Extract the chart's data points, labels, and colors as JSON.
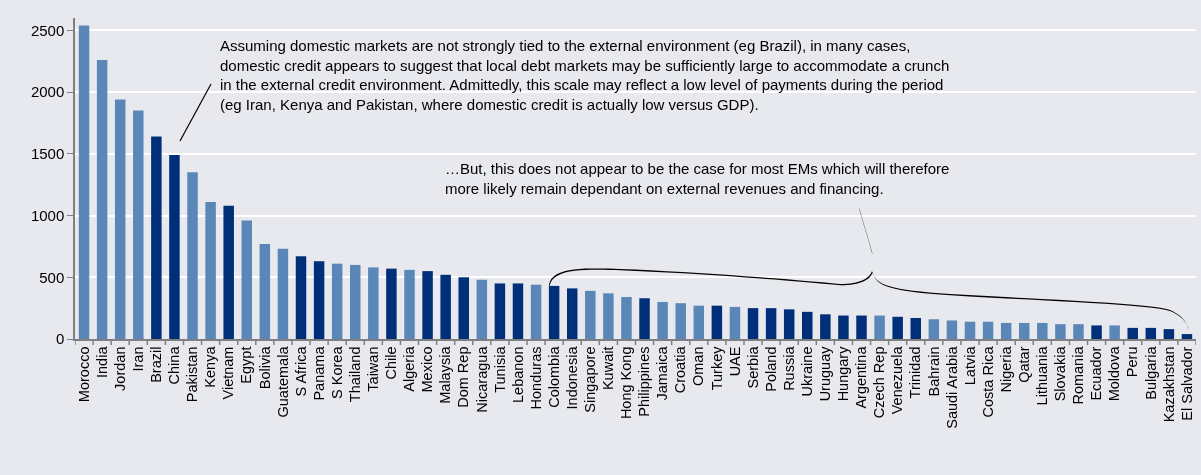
{
  "chart_data": {
    "type": "bar",
    "categories": [
      "Morocco",
      "India",
      "Jordan",
      "Iran",
      "Brazil",
      "China",
      "Pakistan",
      "Kenya",
      "Vietnam",
      "Egypt",
      "Bolivia",
      "Guatemala",
      "S Africa",
      "Panama",
      "S Korea",
      "Thailand",
      "Taiwan",
      "Chile",
      "Algeria",
      "Mexico",
      "Malaysia",
      "Dom Rep",
      "Nicaragua",
      "Tunisia",
      "Lebanon",
      "Honduras",
      "Colombia",
      "Indonesia",
      "Singapore",
      "Kuwait",
      "Hong Kong",
      "Philippines",
      "Jamaica",
      "Croatia",
      "Oman",
      "Turkey",
      "UAE",
      "Serbia",
      "Poland",
      "Russia",
      "Ukraine",
      "Uruguay",
      "Hungary",
      "Argentina",
      "Czech Rep",
      "Venezuela",
      "Trinidad",
      "Bahrain",
      "Saudi Arabia",
      "Latvia",
      "Costa Rica",
      "Nigeria",
      "Qatar",
      "Lithuania",
      "Slovakia",
      "Romania",
      "Ecuador",
      "Moldova",
      "Peru",
      "Bulgaria",
      "Kazakhstan",
      "El Salvador"
    ],
    "values": [
      2540,
      2260,
      1940,
      1850,
      1640,
      1490,
      1350,
      1110,
      1080,
      960,
      770,
      730,
      670,
      630,
      610,
      600,
      580,
      570,
      560,
      550,
      520,
      500,
      480,
      450,
      450,
      440,
      430,
      410,
      390,
      370,
      340,
      330,
      300,
      290,
      270,
      270,
      260,
      250,
      250,
      240,
      220,
      200,
      190,
      190,
      190,
      180,
      170,
      160,
      150,
      140,
      140,
      130,
      130,
      130,
      120,
      120,
      110,
      110,
      90,
      90,
      80,
      40
    ],
    "colors": [
      "#5b86b8",
      "#5b86b8",
      "#5b86b8",
      "#5b86b8",
      "#002f7a",
      "#002f7a",
      "#5b86b8",
      "#5b86b8",
      "#002f7a",
      "#5b86b8",
      "#5b86b8",
      "#5b86b8",
      "#002f7a",
      "#002f7a",
      "#5b86b8",
      "#5b86b8",
      "#5b86b8",
      "#002f7a",
      "#5b86b8",
      "#002f7a",
      "#002f7a",
      "#002f7a",
      "#5b86b8",
      "#002f7a",
      "#002f7a",
      "#5b86b8",
      "#002f7a",
      "#002f7a",
      "#5b86b8",
      "#5b86b8",
      "#5b86b8",
      "#002f7a",
      "#5b86b8",
      "#5b86b8",
      "#5b86b8",
      "#002f7a",
      "#5b86b8",
      "#002f7a",
      "#002f7a",
      "#002f7a",
      "#002f7a",
      "#002f7a",
      "#002f7a",
      "#002f7a",
      "#5b86b8",
      "#002f7a",
      "#002f7a",
      "#5b86b8",
      "#5b86b8",
      "#5b86b8",
      "#5b86b8",
      "#5b86b8",
      "#5b86b8",
      "#5b86b8",
      "#5b86b8",
      "#5b86b8",
      "#002f7a",
      "#5b86b8",
      "#002f7a",
      "#002f7a",
      "#002f7a",
      "#002f7a"
    ],
    "ylim": [
      0,
      2600
    ],
    "yticks": [
      0,
      500,
      1000,
      1500,
      2000,
      2500
    ],
    "grid": "y",
    "annotations": [
      "Assuming domestic markets are not strongly tied to the external environment (eg Brazil), in many cases,\ndomestic credit appears to suggest that local debt markets may be sufficiently large to accommodate a crunch\nin the external credit environment. Admittedly, this scale may reflect a low level of payments during the period\n(eg Iran, Kenya and Pakistan, where domestic credit is actually low versus GDP).",
      "…But, this does not appear to be the case for most EMs which will therefore\nmore likely remain dependant on external revenues and financing."
    ]
  }
}
